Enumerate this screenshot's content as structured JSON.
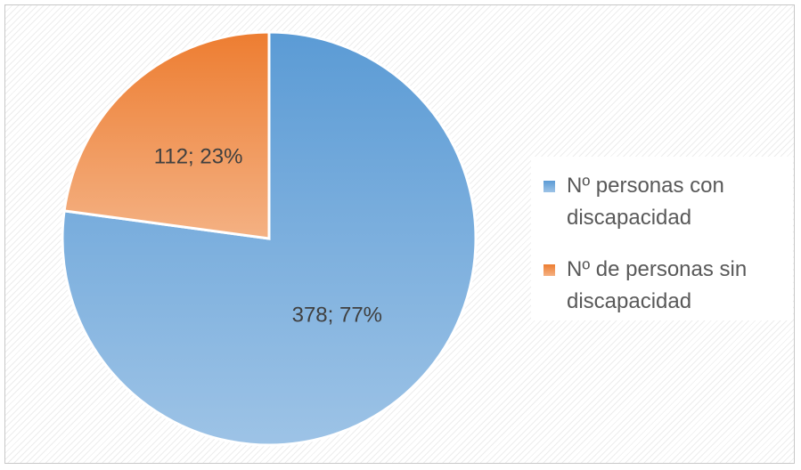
{
  "chart_data": {
    "type": "pie",
    "title": "",
    "slices": [
      {
        "label": "Nº personas con discapacidad",
        "value": 378,
        "percent": "77%",
        "data_label": "378; 77%",
        "color": "#5b9bd5",
        "color_light": "#9dc3e6"
      },
      {
        "label": "Nº de personas sin discapacidad",
        "value": 112,
        "percent": "23%",
        "data_label": "112; 23%",
        "color": "#ed7d31",
        "color_light": "#f4b183"
      }
    ],
    "start_angle_deg": 0,
    "direction": "clockwise",
    "legend_position": "right"
  }
}
